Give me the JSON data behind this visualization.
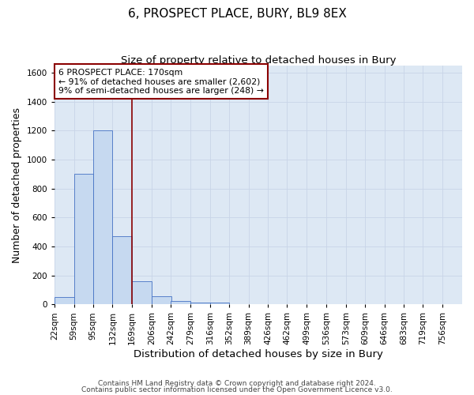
{
  "title": "6, PROSPECT PLACE, BURY, BL9 8EX",
  "subtitle": "Size of property relative to detached houses in Bury",
  "xlabel": "Distribution of detached houses by size in Bury",
  "ylabel": "Number of detached properties",
  "footnote1": "Contains HM Land Registry data © Crown copyright and database right 2024.",
  "footnote2": "Contains public sector information licensed under the Open Government Licence v3.0.",
  "bins": [
    22,
    59,
    95,
    132,
    169,
    206,
    242,
    279,
    316,
    352,
    389,
    426,
    462,
    499,
    536,
    573,
    609,
    646,
    683,
    719,
    756
  ],
  "bin_width": 37,
  "bar_heights": [
    50,
    900,
    1200,
    470,
    160,
    55,
    25,
    15,
    15,
    0,
    0,
    0,
    0,
    0,
    0,
    0,
    0,
    0,
    0,
    0,
    0
  ],
  "bar_color": "#c6d9f0",
  "bar_edge_color": "#4472c4",
  "ylim": [
    0,
    1650
  ],
  "yticks": [
    0,
    200,
    400,
    600,
    800,
    1000,
    1200,
    1400,
    1600
  ],
  "vline_x": 169,
  "vline_color": "#8b0000",
  "annotation_text": "6 PROSPECT PLACE: 170sqm\n← 91% of detached houses are smaller (2,602)\n9% of semi-detached houses are larger (248) →",
  "annotation_box_color": "#8b0000",
  "annotation_bg": "#ffffff",
  "grid_color": "#c8d4e8",
  "bg_color": "#dde8f4",
  "title_fontsize": 11,
  "subtitle_fontsize": 9.5,
  "tick_fontsize": 7.5,
  "ylabel_fontsize": 9,
  "xlabel_fontsize": 9.5,
  "footnote_fontsize": 6.5,
  "annotation_fontsize": 7.8
}
